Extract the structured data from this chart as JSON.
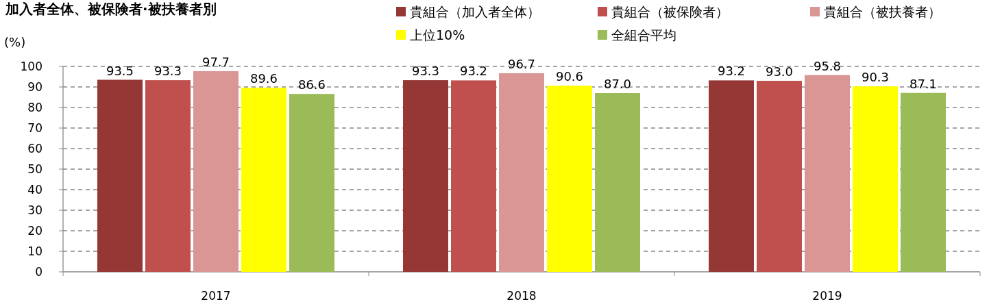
{
  "chart_data": {
    "type": "bar",
    "title": "加入者全体、被保険者·被扶養者別",
    "ylabel": "(%)",
    "categories": [
      "2017",
      "2018",
      "2019"
    ],
    "series": [
      {
        "name": "貴組合（加入者全体）",
        "color": "#953735",
        "values": [
          93.5,
          93.3,
          93.2
        ],
        "value_labels": [
          "93.5",
          "93.3",
          "93.2"
        ]
      },
      {
        "name": "貴組合（被保険者）",
        "color": "#c0504d",
        "values": [
          93.3,
          93.2,
          93.0
        ],
        "value_labels": [
          "93.3",
          "93.2",
          "93.0"
        ]
      },
      {
        "name": "貴組合（被扶養者）",
        "color": "#d99694",
        "values": [
          97.7,
          96.7,
          95.8
        ],
        "value_labels": [
          "97.7",
          "96.7",
          "95.8"
        ]
      },
      {
        "name": "上位10%",
        "color": "#ffff00",
        "values": [
          89.6,
          90.6,
          90.3
        ],
        "value_labels": [
          "89.6",
          "90.6",
          "90.3"
        ]
      },
      {
        "name": "全組合平均",
        "color": "#9bbb59",
        "values": [
          86.6,
          87.0,
          87.1
        ],
        "value_labels": [
          "86.6",
          "87.0",
          "87.1"
        ]
      }
    ],
    "ylim": [
      0,
      100
    ],
    "yticks": [
      0,
      10,
      20,
      30,
      40,
      50,
      60,
      70,
      80,
      90,
      100
    ],
    "grid": "y",
    "legend": "top"
  }
}
